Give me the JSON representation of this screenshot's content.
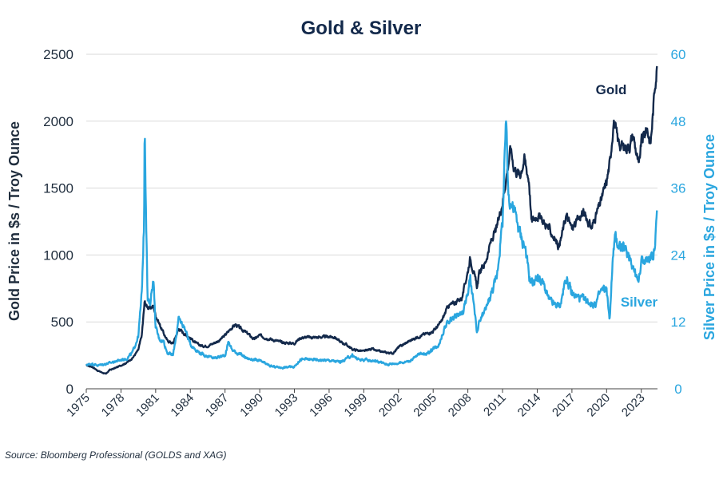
{
  "chart_data": {
    "type": "line",
    "title": "Gold & Silver",
    "ylabel_left": "Gold Price in $s / Troy Ounce",
    "ylabel_right": "Silver Price in $s / Troy Ounce",
    "ylim_left": [
      0,
      2500
    ],
    "ylim_right": [
      0,
      60
    ],
    "yticks_left": [
      "0",
      "500",
      "1000",
      "1500",
      "2000",
      "2500"
    ],
    "yticks_right": [
      "0",
      "12",
      "24",
      "36",
      "48",
      "60"
    ],
    "xlim": [
      1975,
      2024.4
    ],
    "xticks": [
      "1975",
      "1978",
      "1981",
      "1984",
      "1987",
      "1990",
      "1993",
      "1996",
      "1999",
      "2002",
      "2005",
      "2008",
      "2011",
      "2014",
      "2017",
      "2020",
      "2023"
    ],
    "grid": "horizontal",
    "series": [
      {
        "name": "Gold",
        "axis": "left",
        "color": "#13294b",
        "x": [
          1975.0,
          1975.5,
          1976.0,
          1976.7,
          1977.0,
          1977.5,
          1978.0,
          1978.5,
          1979.0,
          1979.5,
          1979.8,
          1980.05,
          1980.2,
          1980.5,
          1980.8,
          1981.0,
          1981.5,
          1982.0,
          1982.5,
          1983.0,
          1983.5,
          1984.0,
          1984.5,
          1985.0,
          1985.5,
          1986.0,
          1986.5,
          1987.0,
          1987.5,
          1987.9,
          1988.5,
          1989.0,
          1989.5,
          1990.0,
          1990.5,
          1991.0,
          1992.0,
          1993.0,
          1993.5,
          1994.0,
          1995.0,
          1996.0,
          1996.5,
          1997.0,
          1997.5,
          1998.0,
          1999.0,
          1999.7,
          2000.0,
          2001.0,
          2001.5,
          2002.0,
          2003.0,
          2004.0,
          2005.0,
          2005.7,
          2006.3,
          2006.8,
          2007.5,
          2008.0,
          2008.2,
          2008.8,
          2009.0,
          2009.5,
          2010.0,
          2010.5,
          2011.0,
          2011.7,
          2012.0,
          2012.5,
          2012.9,
          2013.3,
          2013.5,
          2014.0,
          2014.5,
          2015.0,
          2015.9,
          2016.5,
          2017.0,
          2017.5,
          2018.0,
          2018.7,
          2019.0,
          2019.5,
          2020.0,
          2020.3,
          2020.6,
          2021.0,
          2021.5,
          2022.0,
          2022.3,
          2022.8,
          2023.0,
          2023.5,
          2023.8,
          2024.0,
          2024.2,
          2024.35
        ],
        "values": [
          175,
          165,
          135,
          110,
          140,
          155,
          175,
          195,
          230,
          290,
          400,
          650,
          620,
          600,
          620,
          550,
          450,
          360,
          340,
          450,
          410,
          380,
          340,
          320,
          320,
          340,
          360,
          400,
          450,
          480,
          440,
          410,
          370,
          400,
          380,
          370,
          345,
          340,
          380,
          385,
          385,
          390,
          385,
          350,
          330,
          295,
          280,
          300,
          285,
          270,
          265,
          310,
          360,
          400,
          430,
          500,
          620,
          640,
          680,
          880,
          980,
          760,
          870,
          940,
          1100,
          1200,
          1400,
          1800,
          1650,
          1600,
          1720,
          1550,
          1250,
          1300,
          1250,
          1200,
          1060,
          1300,
          1200,
          1260,
          1320,
          1200,
          1280,
          1400,
          1550,
          1700,
          2000,
          1850,
          1800,
          1820,
          1900,
          1650,
          1850,
          1950,
          1830,
          2050,
          2300,
          2400
        ]
      },
      {
        "name": "Silver",
        "axis": "right",
        "color": "#2aa6df",
        "x": [
          1975.0,
          1975.5,
          1976.0,
          1976.5,
          1977.0,
          1978.0,
          1978.5,
          1979.0,
          1979.5,
          1979.8,
          1980.0,
          1980.05,
          1980.15,
          1980.3,
          1980.5,
          1980.8,
          1981.0,
          1981.3,
          1981.7,
          1982.0,
          1982.5,
          1983.0,
          1983.5,
          1984.0,
          1984.5,
          1985.0,
          1986.0,
          1987.0,
          1987.3,
          1987.6,
          1988.0,
          1989.0,
          1990.0,
          1991.0,
          1992.0,
          1993.0,
          1993.5,
          1994.0,
          1995.0,
          1996.0,
          1997.0,
          1998.0,
          1998.5,
          1999.0,
          2000.0,
          2001.0,
          2002.0,
          2003.0,
          2004.0,
          2004.5,
          2005.0,
          2005.5,
          2006.0,
          2006.5,
          2007.0,
          2007.5,
          2008.0,
          2008.2,
          2008.8,
          2009.0,
          2009.5,
          2010.0,
          2010.5,
          2011.0,
          2011.3,
          2011.5,
          2011.8,
          2012.0,
          2012.5,
          2013.0,
          2013.3,
          2013.6,
          2014.0,
          2014.5,
          2015.0,
          2015.5,
          2016.0,
          2016.5,
          2017.0,
          2018.0,
          2019.0,
          2019.5,
          2020.0,
          2020.25,
          2020.5,
          2020.7,
          2021.0,
          2021.5,
          2022.0,
          2022.7,
          2023.0,
          2023.5,
          2024.0,
          2024.2,
          2024.35
        ],
        "values": [
          4.3,
          4.5,
          4.2,
          4.4,
          4.6,
          5.2,
          5.4,
          6.5,
          9.5,
          17,
          30,
          49,
          35,
          16,
          15,
          20,
          11,
          9,
          8.5,
          6.5,
          6.0,
          12.5,
          11,
          8,
          7,
          6.2,
          5.5,
          6.0,
          8.5,
          7.0,
          6.5,
          5.4,
          5.0,
          4.0,
          3.8,
          4.0,
          5.2,
          5.3,
          5.2,
          5.1,
          4.8,
          6.0,
          5.3,
          5.2,
          5.0,
          4.4,
          4.6,
          5.0,
          6.5,
          6.2,
          7.2,
          8.0,
          11,
          12.5,
          13,
          13.5,
          17,
          20,
          10,
          12,
          14,
          17,
          20,
          30,
          48,
          35,
          33,
          32,
          28,
          25,
          20,
          19,
          20,
          19,
          16,
          15,
          15,
          20,
          17,
          16,
          15,
          17.5,
          18,
          12,
          22,
          27,
          26,
          25,
          24,
          19,
          23,
          23,
          24,
          26,
          31
        ]
      }
    ],
    "annotations": [
      "Gold",
      "Silver"
    ],
    "source": "Source: Bloomberg Professional (GOLDS and XAG)"
  }
}
